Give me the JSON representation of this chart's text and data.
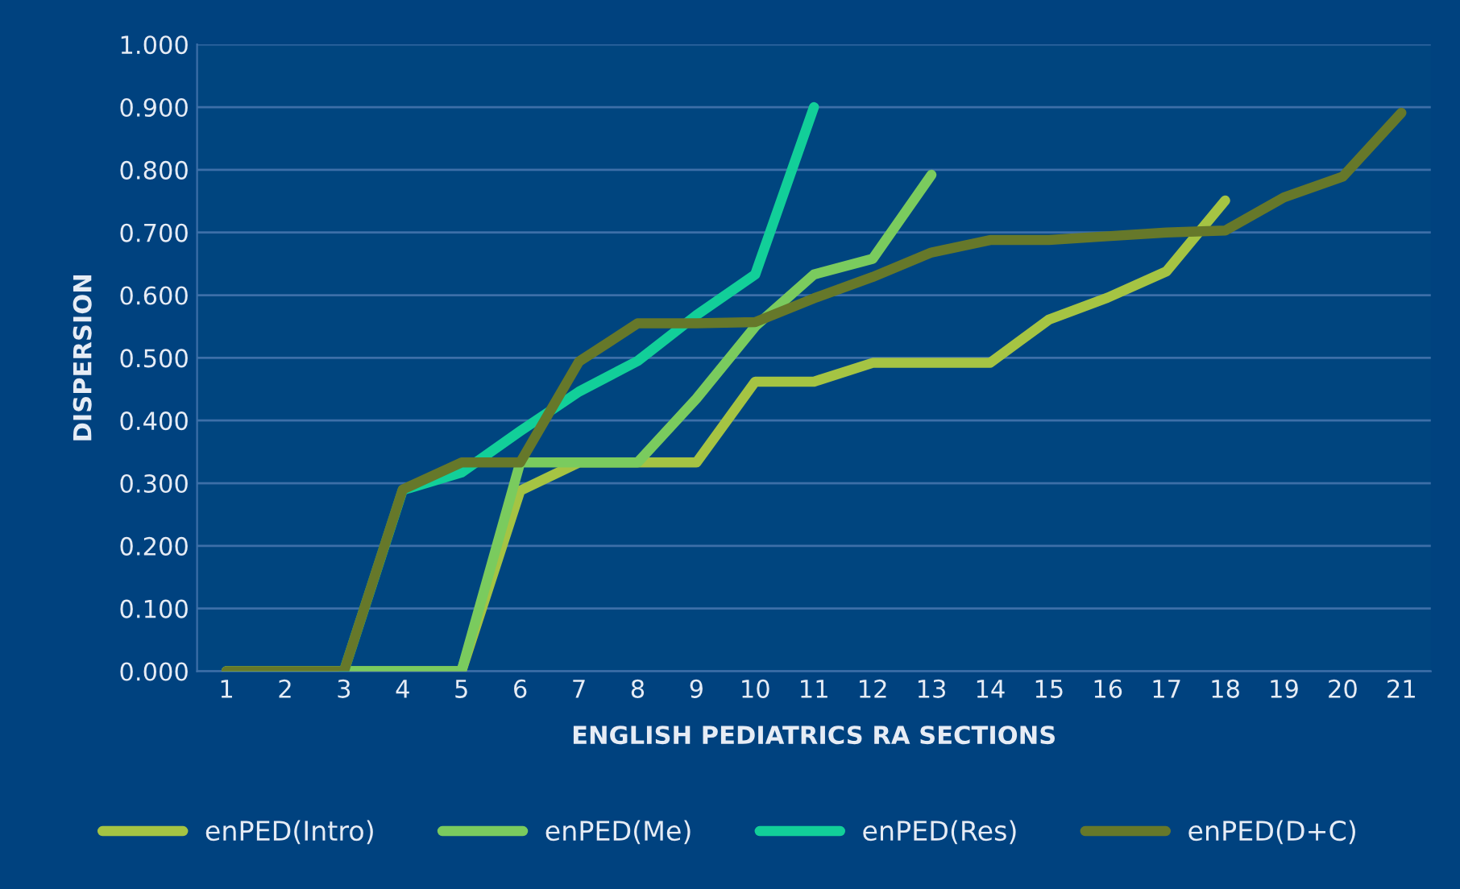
{
  "chart_data": {
    "type": "line",
    "xlabel": "ENGLISH PEDIATRICS RA SECTIONS",
    "ylabel": "DISPERSION",
    "categories": [
      "1",
      "2",
      "3",
      "4",
      "5",
      "6",
      "7",
      "8",
      "9",
      "10",
      "11",
      "12",
      "13",
      "14",
      "15",
      "16",
      "17",
      "18",
      "19",
      "20",
      "21"
    ],
    "series": [
      {
        "name": "enPED(Intro)",
        "color": "#a5c443",
        "values": [
          0,
          0,
          0,
          0,
          0,
          0.288,
          0.333,
          0.333,
          0.333,
          0.462,
          0.462,
          0.492,
          0.492,
          0.492,
          0.561,
          0.596,
          0.638,
          0.751,
          null,
          null,
          null
        ]
      },
      {
        "name": "enPED(Me)",
        "color": "#7acb5e",
        "values": [
          0,
          0,
          0,
          0,
          0,
          0.333,
          0.333,
          0.333,
          0.435,
          0.55,
          0.633,
          0.658,
          0.792,
          null,
          null,
          null,
          null,
          null,
          null,
          null,
          null
        ]
      },
      {
        "name": "enPED(Res)",
        "color": "#12cf99",
        "values": [
          null,
          null,
          0,
          0.289,
          0.317,
          0.383,
          0.446,
          0.495,
          0.568,
          0.633,
          0.9,
          null,
          null,
          null,
          null,
          null,
          null,
          null,
          null,
          null,
          null
        ]
      },
      {
        "name": "enPED(D+C)",
        "color": "#66782a",
        "values": [
          0,
          0,
          0,
          0.29,
          0.333,
          0.333,
          0.494,
          0.555,
          0.555,
          0.557,
          0.595,
          0.629,
          0.668,
          0.688,
          0.688,
          0.694,
          0.7,
          0.703,
          0.756,
          0.789,
          0.891
        ]
      }
    ],
    "ylim": [
      0,
      1.0
    ],
    "yticks": [
      {
        "value": 0,
        "label": "0.000"
      },
      {
        "value": 0.1,
        "label": "0.100"
      },
      {
        "value": 0.2,
        "label": "0.200"
      },
      {
        "value": 0.3,
        "label": "0.300"
      },
      {
        "value": 0.4,
        "label": "0.400"
      },
      {
        "value": 0.5,
        "label": "0.500"
      },
      {
        "value": 0.6,
        "label": "0.600"
      },
      {
        "value": 0.7,
        "label": "0.700"
      },
      {
        "value": 0.8,
        "label": "0.800"
      },
      {
        "value": 0.9,
        "label": "0.900"
      },
      {
        "value": 1.0,
        "label": "1.000"
      }
    ],
    "grid": "y",
    "legend": "bottom",
    "line_style": "solid",
    "marker": "none"
  }
}
